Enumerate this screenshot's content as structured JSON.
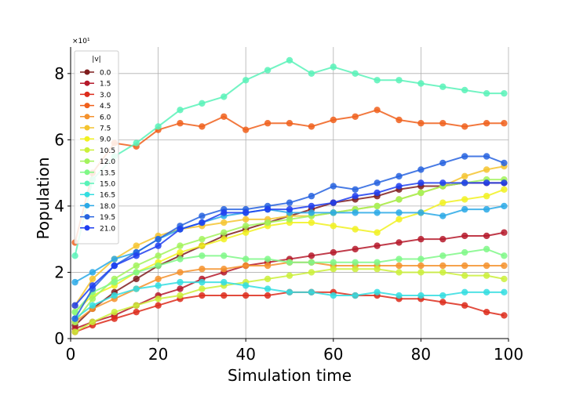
{
  "chart_data": {
    "type": "line",
    "title": "",
    "xlabel": "Simulation time",
    "ylabel": "Population",
    "y_multiplier_label": "×10¹",
    "xlim": [
      0,
      100
    ],
    "ylim": [
      0,
      8.8
    ],
    "x_ticks": [
      "0",
      "20",
      "40",
      "60",
      "80",
      "100"
    ],
    "y_ticks": [
      "0",
      "2",
      "4",
      "6",
      "8"
    ],
    "grid": true,
    "legend": {
      "title": "|v|",
      "placement": "upper-left"
    },
    "x": [
      1,
      5,
      10,
      15,
      20,
      25,
      30,
      35,
      40,
      45,
      50,
      55,
      60,
      65,
      70,
      75,
      80,
      85,
      90,
      95,
      99
    ],
    "series": [
      {
        "name": "0.0",
        "color": "#7f1d1d",
        "values": [
          0.4,
          0.9,
          1.4,
          1.8,
          2.2,
          2.5,
          2.8,
          3.1,
          3.3,
          3.5,
          3.7,
          3.9,
          4.1,
          4.2,
          4.3,
          4.5,
          4.6,
          4.6,
          4.7,
          4.7,
          4.7
        ]
      },
      {
        "name": "1.5",
        "color": "#b5192a",
        "values": [
          0.3,
          0.5,
          0.7,
          1.0,
          1.3,
          1.5,
          1.8,
          2.0,
          2.2,
          2.3,
          2.4,
          2.5,
          2.6,
          2.7,
          2.8,
          2.9,
          3.0,
          3.0,
          3.1,
          3.1,
          3.2
        ]
      },
      {
        "name": "3.0",
        "color": "#dd2b1b",
        "values": [
          0.2,
          0.4,
          0.6,
          0.8,
          1.0,
          1.2,
          1.3,
          1.3,
          1.3,
          1.3,
          1.4,
          1.4,
          1.4,
          1.3,
          1.3,
          1.2,
          1.2,
          1.1,
          1.0,
          0.8,
          0.7
        ]
      },
      {
        "name": "4.5",
        "color": "#f0601c",
        "values": [
          2.9,
          5.0,
          5.9,
          5.8,
          6.3,
          6.5,
          6.4,
          6.7,
          6.3,
          6.5,
          6.5,
          6.4,
          6.6,
          6.7,
          6.9,
          6.6,
          6.5,
          6.5,
          6.4,
          6.5,
          6.5
        ]
      },
      {
        "name": "6.0",
        "color": "#f4922d",
        "values": [
          0.5,
          0.9,
          1.2,
          1.5,
          1.8,
          2.0,
          2.1,
          2.1,
          2.2,
          2.2,
          2.3,
          2.3,
          2.2,
          2.2,
          2.2,
          2.2,
          2.2,
          2.2,
          2.2,
          2.2,
          2.2
        ]
      },
      {
        "name": "7.5",
        "color": "#f4c430",
        "values": [
          1.0,
          1.8,
          2.4,
          2.8,
          3.1,
          3.3,
          3.4,
          3.5,
          3.6,
          3.6,
          3.7,
          3.7,
          3.8,
          3.9,
          4.0,
          4.2,
          4.4,
          4.6,
          4.9,
          5.1,
          5.2
        ]
      },
      {
        "name": "9.0",
        "color": "#f1f121",
        "values": [
          0.8,
          1.3,
          1.6,
          2.0,
          2.3,
          2.6,
          2.8,
          3.0,
          3.2,
          3.4,
          3.5,
          3.5,
          3.4,
          3.3,
          3.2,
          3.6,
          3.8,
          4.1,
          4.2,
          4.3,
          4.5
        ]
      },
      {
        "name": "10.5",
        "color": "#cbf03a",
        "values": [
          0.2,
          0.5,
          0.8,
          1.0,
          1.2,
          1.3,
          1.5,
          1.6,
          1.7,
          1.8,
          1.9,
          2.0,
          2.1,
          2.1,
          2.1,
          2.0,
          2.0,
          2.0,
          1.9,
          1.9,
          1.8
        ]
      },
      {
        "name": "12.0",
        "color": "#a2f35c",
        "values": [
          0.5,
          1.2,
          1.8,
          2.2,
          2.5,
          2.8,
          3.0,
          3.2,
          3.4,
          3.5,
          3.6,
          3.7,
          3.8,
          3.9,
          4.0,
          4.2,
          4.4,
          4.6,
          4.7,
          4.8,
          4.8
        ]
      },
      {
        "name": "13.5",
        "color": "#7ff887",
        "values": [
          0.8,
          1.4,
          1.7,
          2.0,
          2.2,
          2.4,
          2.5,
          2.5,
          2.4,
          2.4,
          2.3,
          2.3,
          2.3,
          2.3,
          2.3,
          2.4,
          2.4,
          2.5,
          2.6,
          2.7,
          2.5
        ]
      },
      {
        "name": "15.0",
        "color": "#59f2b8",
        "values": [
          2.5,
          4.8,
          5.5,
          5.9,
          6.4,
          6.9,
          7.1,
          7.3,
          7.8,
          8.1,
          8.4,
          8.0,
          8.2,
          8.0,
          7.8,
          7.8,
          7.7,
          7.6,
          7.5,
          7.4,
          7.4
        ]
      },
      {
        "name": "16.5",
        "color": "#33dde0",
        "values": [
          0.6,
          1.0,
          1.3,
          1.5,
          1.6,
          1.7,
          1.7,
          1.7,
          1.6,
          1.5,
          1.4,
          1.4,
          1.3,
          1.3,
          1.4,
          1.3,
          1.3,
          1.3,
          1.4,
          1.4,
          1.4
        ]
      },
      {
        "name": "18.0",
        "color": "#2aa9e6",
        "values": [
          1.7,
          2.0,
          2.4,
          2.6,
          3.0,
          3.3,
          3.5,
          3.7,
          3.8,
          3.9,
          3.8,
          3.8,
          3.8,
          3.8,
          3.8,
          3.8,
          3.8,
          3.7,
          3.9,
          3.9,
          4.0
        ]
      },
      {
        "name": "19.5",
        "color": "#2763df",
        "values": [
          0.6,
          1.5,
          2.2,
          2.6,
          3.0,
          3.4,
          3.7,
          3.9,
          3.9,
          4.0,
          4.1,
          4.3,
          4.6,
          4.5,
          4.7,
          4.9,
          5.1,
          5.3,
          5.5,
          5.5,
          5.3
        ]
      },
      {
        "name": "21.0",
        "color": "#1e3ef0",
        "values": [
          1.0,
          1.6,
          2.2,
          2.5,
          2.8,
          3.3,
          3.5,
          3.8,
          3.8,
          3.9,
          3.9,
          4.0,
          4.1,
          4.3,
          4.4,
          4.6,
          4.7,
          4.7,
          4.7,
          4.7,
          4.7
        ]
      }
    ]
  }
}
